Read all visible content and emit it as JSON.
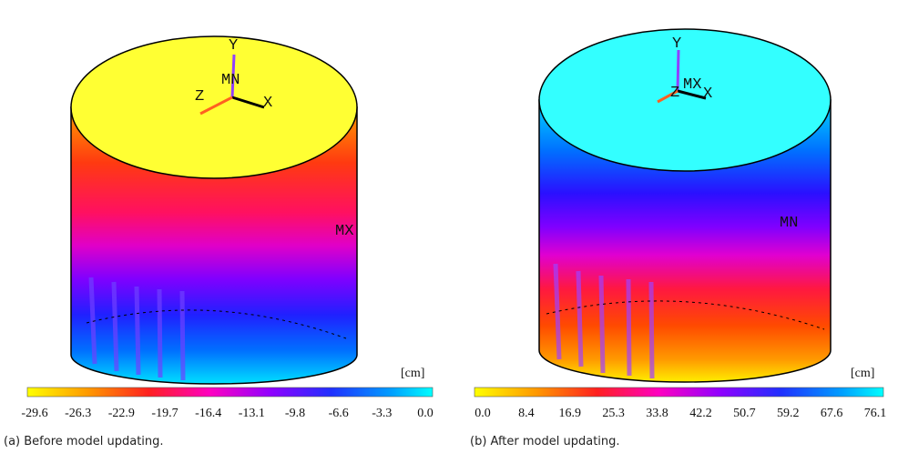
{
  "panels": [
    {
      "triad": {
        "y": "Y",
        "node": "MN",
        "z": "Z",
        "x": "X"
      },
      "extreme": "MX",
      "unit": "[cm]",
      "colorbar": [
        "-29.6",
        "-26.3",
        "-22.9",
        "-19.7",
        "-16.4",
        "-13.1",
        "-9.8",
        "-6.6",
        "-3.3",
        "0.0"
      ],
      "caption": "(a) Before model updating."
    },
    {
      "triad": {
        "y": "Y",
        "node": "MX",
        "z": "Z",
        "x": "X"
      },
      "extreme": "MN",
      "unit": "[cm]",
      "colorbar": [
        "0.0",
        "8.4",
        "16.9",
        "25.3",
        "33.8",
        "42.2",
        "50.7",
        "59.2",
        "67.6",
        "76.1"
      ],
      "caption": "(b) After model updating."
    }
  ]
}
